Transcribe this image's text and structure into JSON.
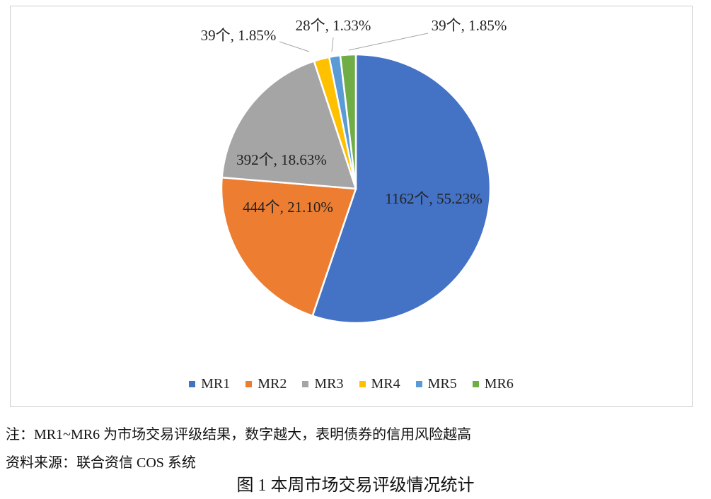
{
  "chart_data": {
    "type": "pie",
    "slices": [
      {
        "name": "MR1",
        "value": 1162,
        "percent": 55.23,
        "label": "1162个, 55.23%",
        "color": "#4472C4"
      },
      {
        "name": "MR2",
        "value": 444,
        "percent": 21.1,
        "label": "444个, 21.10%",
        "color": "#ED7D31"
      },
      {
        "name": "MR3",
        "value": 392,
        "percent": 18.63,
        "label": "392个, 18.63%",
        "color": "#A5A5A5"
      },
      {
        "name": "MR4",
        "value": 39,
        "percent": 1.85,
        "label": "39个, 1.85%",
        "color": "#FFC000"
      },
      {
        "name": "MR5",
        "value": 28,
        "percent": 1.33,
        "label": "28个, 1.33%",
        "color": "#5B9BD5"
      },
      {
        "name": "MR6",
        "value": 39,
        "percent": 1.85,
        "label": "39个, 1.85%",
        "color": "#70AD47"
      }
    ],
    "legend": [
      "MR1",
      "MR2",
      "MR3",
      "MR4",
      "MR5",
      "MR6"
    ],
    "legend_position": "bottom",
    "start": "12 o'clock, clockwise"
  },
  "notes": {
    "note": "注：MR1~MR6 为市场交易评级结果，数字越大，表明债券的信用风险越高",
    "source": "资料来源：联合资信 COS 系统"
  },
  "caption": "图 1  本周市场交易评级情况统计"
}
